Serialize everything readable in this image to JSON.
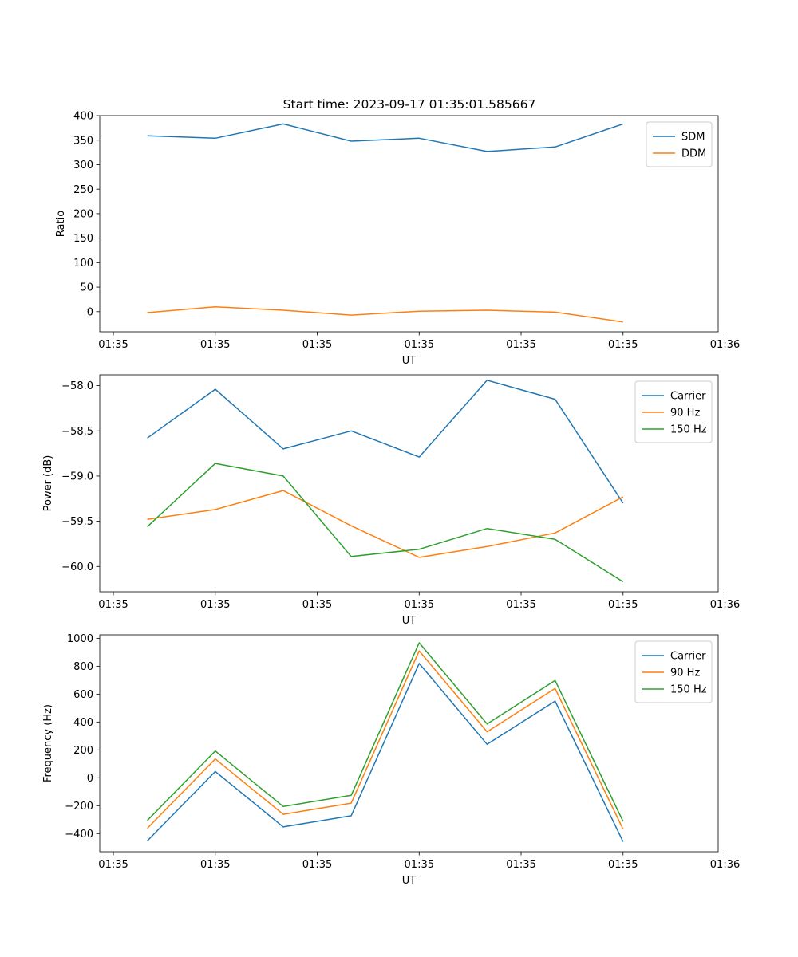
{
  "figure": {
    "title": "Start time: 2023-09-17 01:35:01.585667"
  },
  "colors": {
    "blue": "#1f77b4",
    "orange": "#ff7f0e",
    "green": "#2ca02c"
  },
  "chart_data": [
    {
      "type": "line",
      "title": "Start time: 2023-09-17 01:35:01.585667",
      "xlabel": "UT",
      "ylabel": "Ratio",
      "x": [
        1,
        2,
        3,
        4,
        5,
        6,
        7,
        8
      ],
      "xlim": [
        0.3,
        9.4
      ],
      "xticks": [
        0.5,
        2,
        3.5,
        5,
        6.5,
        8,
        9.5
      ],
      "xticklabels": [
        "01:35",
        "01:35",
        "01:35",
        "01:35",
        "01:35",
        "01:35",
        "01:36"
      ],
      "ylim": [
        -41,
        400
      ],
      "yticks": [
        0,
        50,
        100,
        150,
        200,
        250,
        300,
        350,
        400
      ],
      "yticklabels": [
        "0",
        "50",
        "100",
        "150",
        "200",
        "250",
        "300",
        "350",
        "400"
      ],
      "legend": "top-right",
      "series": [
        {
          "name": "SDM",
          "color": "#1f77b4",
          "values": [
            359,
            354,
            383,
            348,
            354,
            327,
            336,
            383
          ]
        },
        {
          "name": "DDM",
          "color": "#ff7f0e",
          "values": [
            -2,
            10,
            3,
            -7,
            1,
            3,
            -1,
            -21
          ]
        }
      ]
    },
    {
      "type": "line",
      "title": "",
      "xlabel": "UT",
      "ylabel": "Power (dB)",
      "x": [
        1,
        2,
        3,
        4,
        5,
        6,
        7,
        8
      ],
      "xlim": [
        0.3,
        9.4
      ],
      "xticks": [
        0.5,
        2,
        3.5,
        5,
        6.5,
        8,
        9.5
      ],
      "xticklabels": [
        "01:35",
        "01:35",
        "01:35",
        "01:35",
        "01:35",
        "01:35",
        "01:36"
      ],
      "ylim": [
        -60.28,
        -57.88
      ],
      "yticks": [
        -60.0,
        -59.5,
        -59.0,
        -58.5,
        -58.0
      ],
      "yticklabels": [
        "−60.0",
        "−59.5",
        "−59.0",
        "−58.5",
        "−58.0"
      ],
      "legend": "top-right",
      "series": [
        {
          "name": "Carrier",
          "color": "#1f77b4",
          "values": [
            -58.58,
            -58.04,
            -58.7,
            -58.5,
            -58.79,
            -57.94,
            -58.15,
            -59.3
          ]
        },
        {
          "name": "90 Hz",
          "color": "#ff7f0e",
          "values": [
            -59.48,
            -59.37,
            -59.16,
            -59.55,
            -59.9,
            -59.78,
            -59.63,
            -59.23
          ]
        },
        {
          "name": "150 Hz",
          "color": "#2ca02c",
          "values": [
            -59.56,
            -58.86,
            -59.0,
            -59.89,
            -59.81,
            -59.58,
            -59.7,
            -60.17
          ]
        }
      ]
    },
    {
      "type": "line",
      "title": "",
      "xlabel": "UT",
      "ylabel": "Frequency (Hz)",
      "x": [
        1,
        2,
        3,
        4,
        5,
        6,
        7,
        8
      ],
      "xlim": [
        0.3,
        9.4
      ],
      "xticks": [
        0.5,
        2,
        3.5,
        5,
        6.5,
        8,
        9.5
      ],
      "xticklabels": [
        "01:35",
        "01:35",
        "01:35",
        "01:35",
        "01:35",
        "01:35",
        "01:36"
      ],
      "ylim": [
        -530,
        1025
      ],
      "yticks": [
        -400,
        -200,
        0,
        200,
        400,
        600,
        800,
        1000
      ],
      "yticklabels": [
        "−400",
        "−200",
        "0",
        "200",
        "400",
        "600",
        "800",
        "1000"
      ],
      "legend": "top-right",
      "series": [
        {
          "name": "Carrier",
          "color": "#1f77b4",
          "values": [
            -452,
            45,
            -352,
            -272,
            820,
            240,
            550,
            -458
          ]
        },
        {
          "name": "90 Hz",
          "color": "#ff7f0e",
          "values": [
            -362,
            135,
            -262,
            -182,
            910,
            330,
            640,
            -368
          ]
        },
        {
          "name": "150 Hz",
          "color": "#2ca02c",
          "values": [
            -306,
            192,
            -206,
            -126,
            968,
            386,
            698,
            -312
          ]
        }
      ]
    }
  ]
}
